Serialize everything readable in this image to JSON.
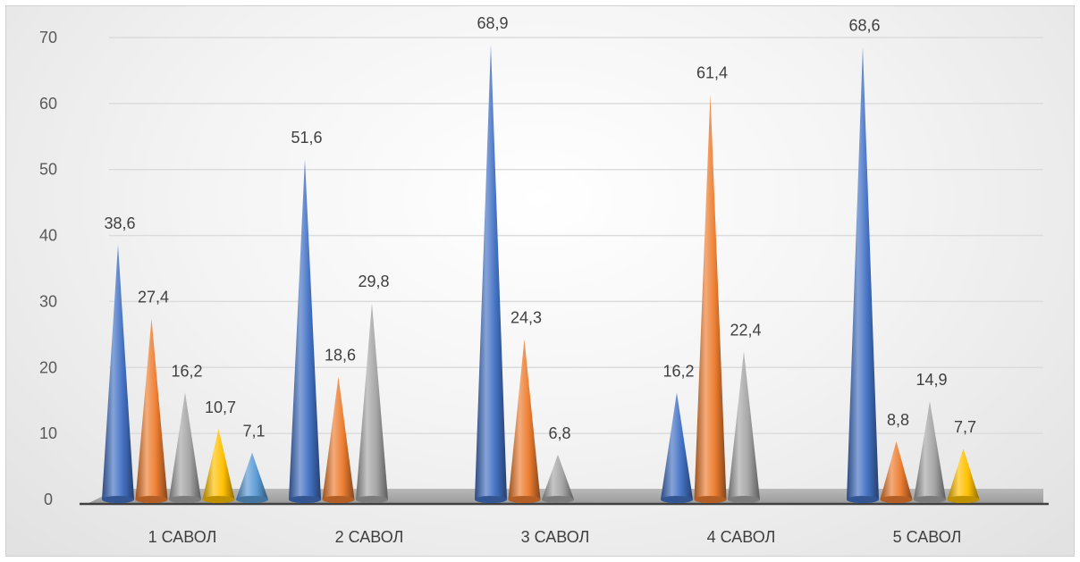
{
  "chart_data": {
    "type": "bar",
    "style": "3d-cone",
    "categories": [
      "1 САВОЛ",
      "2 САВОЛ",
      "3 САВОЛ",
      "4 САВОЛ",
      "5 САВОЛ"
    ],
    "y_ticks": [
      "0",
      "10",
      "20",
      "30",
      "40",
      "50",
      "60",
      "70"
    ],
    "ylim": [
      0,
      70
    ],
    "grid": true,
    "legend": "none",
    "series_colors": [
      "#4472C4",
      "#ED7D31",
      "#A5A5A5",
      "#FFC000",
      "#5B9BD5"
    ],
    "groups": [
      {
        "values": [
          38.6,
          27.4,
          16.2,
          10.7,
          7.1
        ],
        "labels": [
          "38,6",
          "27,4",
          "16,2",
          "10,7",
          "7,1"
        ]
      },
      {
        "values": [
          51.6,
          18.6,
          29.8
        ],
        "labels": [
          "51,6",
          "18,6",
          "29,8"
        ]
      },
      {
        "values": [
          68.9,
          24.3,
          6.8
        ],
        "labels": [
          "68,9",
          "24,3",
          "6,8"
        ]
      },
      {
        "values": [
          16.2,
          61.4,
          22.4
        ],
        "labels": [
          "16,2",
          "61,4",
          "22,4"
        ]
      },
      {
        "values": [
          68.6,
          8.8,
          14.9,
          7.7
        ],
        "labels": [
          "68,6",
          "8,8",
          "14,9",
          "7,7"
        ]
      }
    ]
  }
}
